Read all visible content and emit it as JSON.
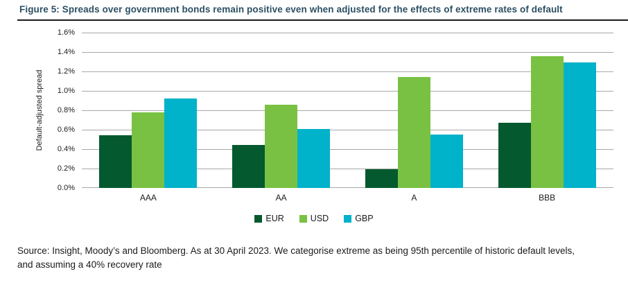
{
  "figure": {
    "title": "Figure 5: Spreads over government bonds remain positive even when adjusted for the effects of extreme rates of default"
  },
  "chart_data": {
    "type": "bar",
    "title": "Figure 5: Spreads over government bonds remain positive even when adjusted for the effects of extreme rates of default",
    "ylabel": "Default-adjusted spread",
    "xlabel": "",
    "categories": [
      "AAA",
      "AA",
      "A",
      "BBB"
    ],
    "series": [
      {
        "name": "EUR",
        "color": "#05592e",
        "values": [
          0.54,
          0.44,
          0.19,
          0.67
        ]
      },
      {
        "name": "USD",
        "color": "#79c143",
        "values": [
          0.78,
          0.86,
          1.14,
          1.36
        ]
      },
      {
        "name": "GBP",
        "color": "#00b2ca",
        "values": [
          0.92,
          0.61,
          0.55,
          1.29
        ]
      }
    ],
    "value_unit": "percent",
    "ylim": [
      0,
      1.6
    ],
    "yticks": [
      "0.0%",
      "0.2%",
      "0.4%",
      "0.6%",
      "0.8%",
      "1.0%",
      "1.2%",
      "1.4%",
      "1.6%"
    ],
    "grid": true,
    "legend_position": "bottom"
  },
  "source": {
    "line1": "Source: Insight, Moody’s and Bloomberg. As at 30 April 2023. We categorise extreme as being 95th percentile of historic default levels,",
    "line2": "and assuming a 40% recovery rate"
  },
  "colors": {
    "title_text": "#2b4f63",
    "rule": "#1a1a1a",
    "gridline": "#a8a8a8",
    "body_text": "#1a1a1a",
    "eur": "#05592e",
    "usd": "#79c143",
    "gbp": "#00b2ca"
  }
}
